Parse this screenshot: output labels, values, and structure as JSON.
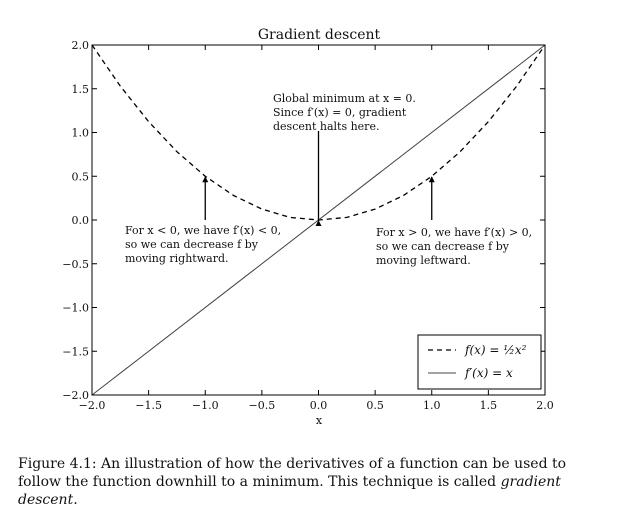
{
  "chart_data": {
    "type": "line",
    "title": "Gradient descent",
    "xlabel": "x",
    "ylabel": "",
    "xlim": [
      -2.0,
      2.0
    ],
    "ylim": [
      -2.0,
      2.0
    ],
    "xticks": [
      "−2.0",
      "−1.5",
      "−1.0",
      "−0.5",
      "0.0",
      "0.5",
      "1.0",
      "1.5",
      "2.0"
    ],
    "yticks": [
      "−2.0",
      "−1.5",
      "−1.0",
      "−0.5",
      "0.0",
      "0.5",
      "1.0",
      "1.5",
      "2.0"
    ],
    "xtick_values": [
      -2.0,
      -1.5,
      -1.0,
      -0.5,
      0.0,
      0.5,
      1.0,
      1.5,
      2.0
    ],
    "ytick_values": [
      -2.0,
      -1.5,
      -1.0,
      -0.5,
      0.0,
      0.5,
      1.0,
      1.5,
      2.0
    ],
    "grid": false,
    "legend_position": "lower-right",
    "series": [
      {
        "name": "f(x) = ½x²",
        "style": "dashed",
        "color": "#000000",
        "x": [
          -2.0,
          -1.75,
          -1.5,
          -1.25,
          -1.0,
          -0.75,
          -0.5,
          -0.25,
          0.0,
          0.25,
          0.5,
          0.75,
          1.0,
          1.25,
          1.5,
          1.75,
          2.0
        ],
        "y": [
          2.0,
          1.53,
          1.125,
          0.78,
          0.5,
          0.28,
          0.125,
          0.03,
          0.0,
          0.03,
          0.125,
          0.28,
          0.5,
          0.78,
          1.125,
          1.53,
          2.0
        ]
      },
      {
        "name": "f′(x) = x",
        "style": "solid",
        "color": "#444444",
        "x": [
          -2.0,
          2.0
        ],
        "y": [
          -2.0,
          2.0
        ]
      }
    ],
    "legend_labels": [
      "f(x) = ½x²",
      "f′(x) = x"
    ],
    "annotations": [
      {
        "lines": [
          "Global minimum at x = 0.",
          "Since f′(x) = 0, gradient",
          "descent halts here."
        ],
        "arrow_to": [
          0.0,
          0.0
        ]
      },
      {
        "lines": [
          "For x < 0, we have f′(x) < 0,",
          "so we can decrease f by",
          "moving rightward."
        ],
        "arrow_to": [
          -1.0,
          0.5
        ]
      },
      {
        "lines": [
          "For x > 0, we have f′(x) > 0,",
          "so we can decrease f by",
          "moving leftward."
        ],
        "arrow_to": [
          1.0,
          0.5
        ]
      }
    ]
  },
  "caption": {
    "text": "Figure 4.1: An illustration of how the derivatives of a function can be used to follow the function downhill to a minimum. This technique is called ",
    "term": "gradient descent",
    "end": "."
  }
}
